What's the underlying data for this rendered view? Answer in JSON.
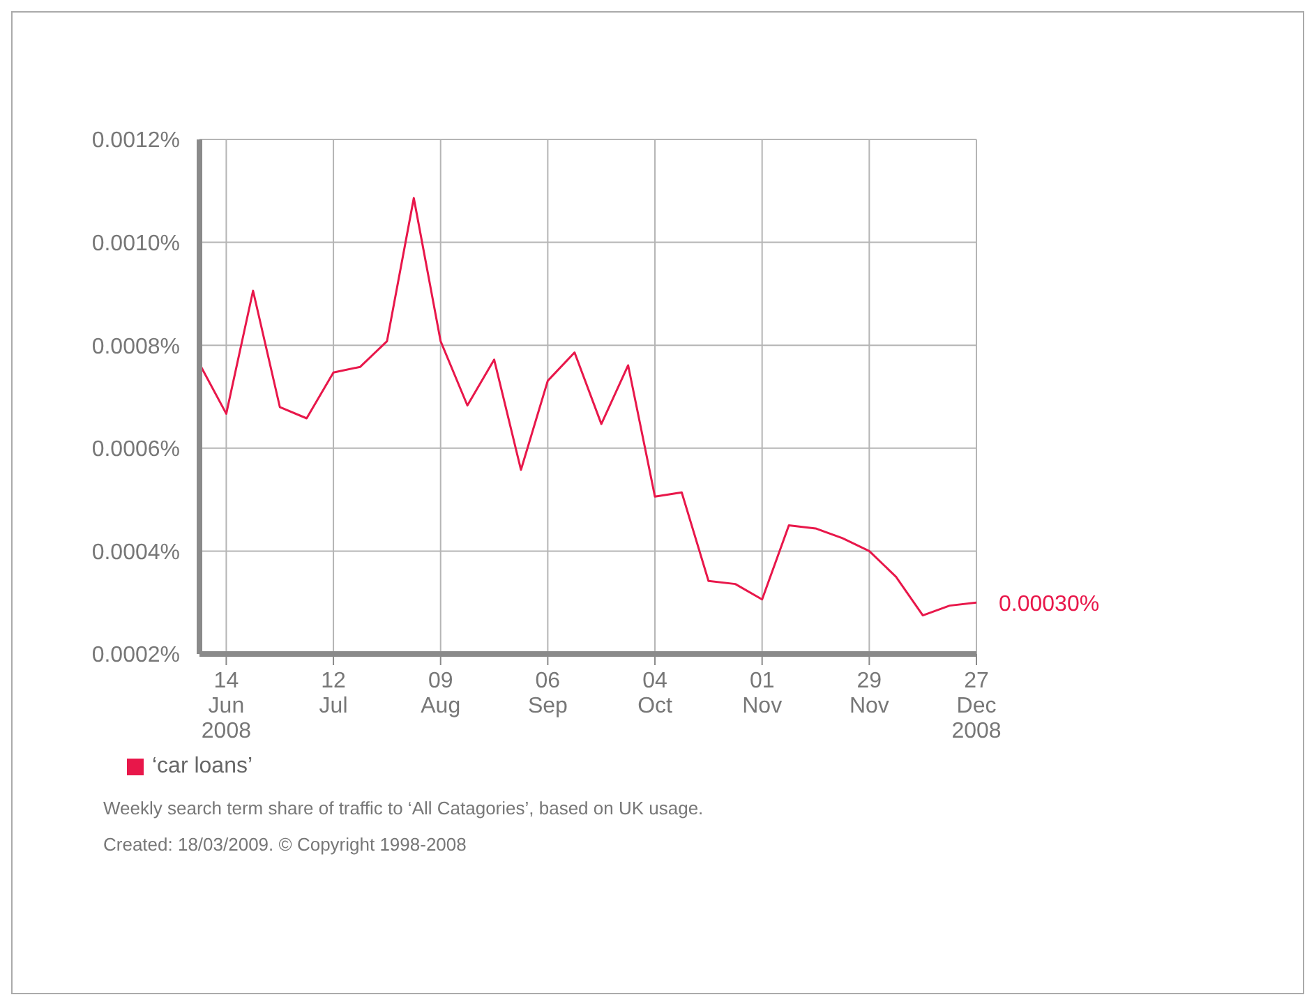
{
  "chart_data": {
    "type": "line",
    "x": [
      "2008-06-07",
      "2008-06-14",
      "2008-06-21",
      "2008-06-28",
      "2008-07-05",
      "2008-07-12",
      "2008-07-19",
      "2008-07-26",
      "2008-08-02",
      "2008-08-09",
      "2008-08-16",
      "2008-08-23",
      "2008-08-30",
      "2008-09-06",
      "2008-09-13",
      "2008-09-20",
      "2008-09-27",
      "2008-10-04",
      "2008-10-11",
      "2008-10-18",
      "2008-10-25",
      "2008-11-01",
      "2008-11-08",
      "2008-11-15",
      "2008-11-22",
      "2008-11-29",
      "2008-12-06",
      "2008-12-13",
      "2008-12-20",
      "2008-12-27"
    ],
    "series": [
      {
        "name": "‘car loans’",
        "color": "#e8174a",
        "values": [
          0.000764,
          0.000667,
          0.000906,
          0.00068,
          0.000658,
          0.000747,
          0.000758,
          0.000808,
          0.001086,
          0.000808,
          0.000683,
          0.000772,
          0.000558,
          0.000731,
          0.000786,
          0.000647,
          0.000761,
          0.000506,
          0.000514,
          0.000342,
          0.000336,
          0.000306,
          0.00045,
          0.000444,
          0.000425,
          0.0004,
          0.00035,
          0.000275,
          0.000294,
          0.0003
        ]
      }
    ],
    "xlim": [
      "2008-06-07",
      "2008-12-27"
    ],
    "xticks": [
      {
        "value": "2008-06-14",
        "label": "14\nJun\n2008"
      },
      {
        "value": "2008-07-12",
        "label": "12\nJul"
      },
      {
        "value": "2008-08-09",
        "label": "09\nAug"
      },
      {
        "value": "2008-09-06",
        "label": "06\nSep"
      },
      {
        "value": "2008-10-04",
        "label": "04\nOct"
      },
      {
        "value": "2008-11-01",
        "label": "01\nNov"
      },
      {
        "value": "2008-11-29",
        "label": "29\nNov"
      },
      {
        "value": "2008-12-27",
        "label": "27\nDec\n2008"
      }
    ],
    "ylim": [
      0.0002,
      0.0012
    ],
    "yticks": [
      {
        "value": 0.0002,
        "label": "0.0002%"
      },
      {
        "value": 0.0004,
        "label": "0.0004%"
      },
      {
        "value": 0.0006,
        "label": "0.0006%"
      },
      {
        "value": 0.0008,
        "label": "0.0008%"
      },
      {
        "value": 0.001,
        "label": "0.0010%"
      },
      {
        "value": 0.0012,
        "label": "0.0012%"
      }
    ],
    "grid": true,
    "legend": "bottom",
    "marker": "none",
    "line_style": "solid",
    "annotations": [
      {
        "text": "0.00030%",
        "x": "2008-12-27",
        "y": 0.0003
      },
      "Weekly search term share of traffic to ‘All Catagories’, based on UK usage.",
      "Created: 18/03/2009. © Copyright 1998-2008"
    ]
  }
}
